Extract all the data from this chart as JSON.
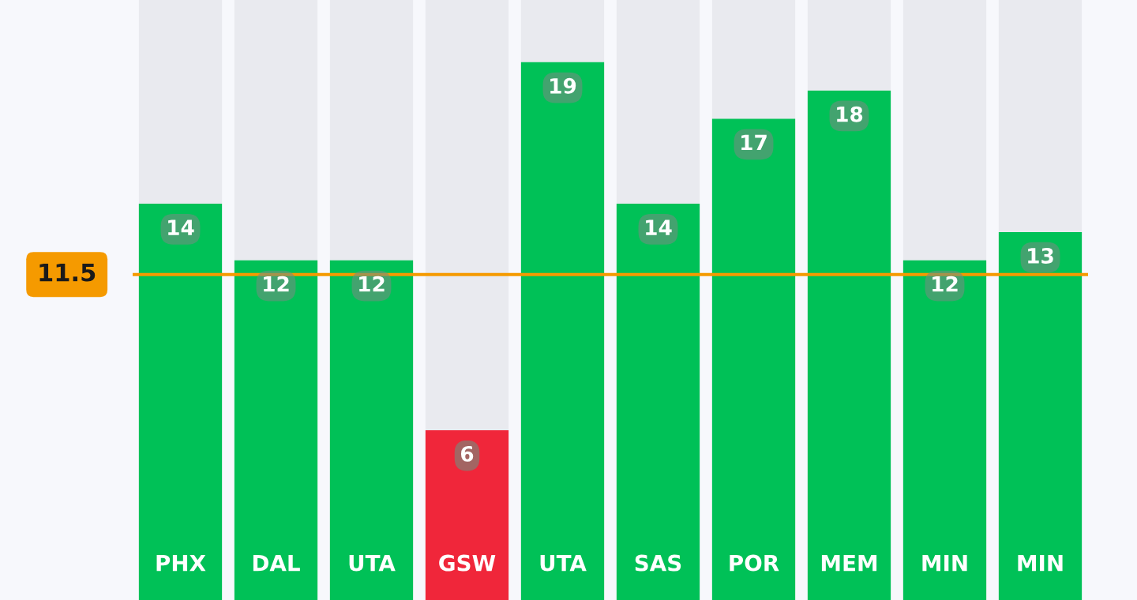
{
  "chart_data": {
    "type": "bar",
    "categories": [
      "PHX",
      "DAL",
      "UTA",
      "GSW",
      "UTA",
      "SAS",
      "POR",
      "MEM",
      "MIN",
      "MIN"
    ],
    "values": [
      14,
      12,
      12,
      6,
      19,
      14,
      17,
      18,
      12,
      13
    ],
    "colors": [
      "#00c157",
      "#00c157",
      "#00c157",
      "#f0263a",
      "#00c157",
      "#00c157",
      "#00c157",
      "#00c157",
      "#00c157",
      "#00c157"
    ],
    "ylim": [
      0,
      21.2
    ],
    "data_labels": true,
    "ref_lines": [
      {
        "axis": "y",
        "value": 11.5,
        "label": "11.5",
        "color": "#f59a00"
      }
    ]
  }
}
